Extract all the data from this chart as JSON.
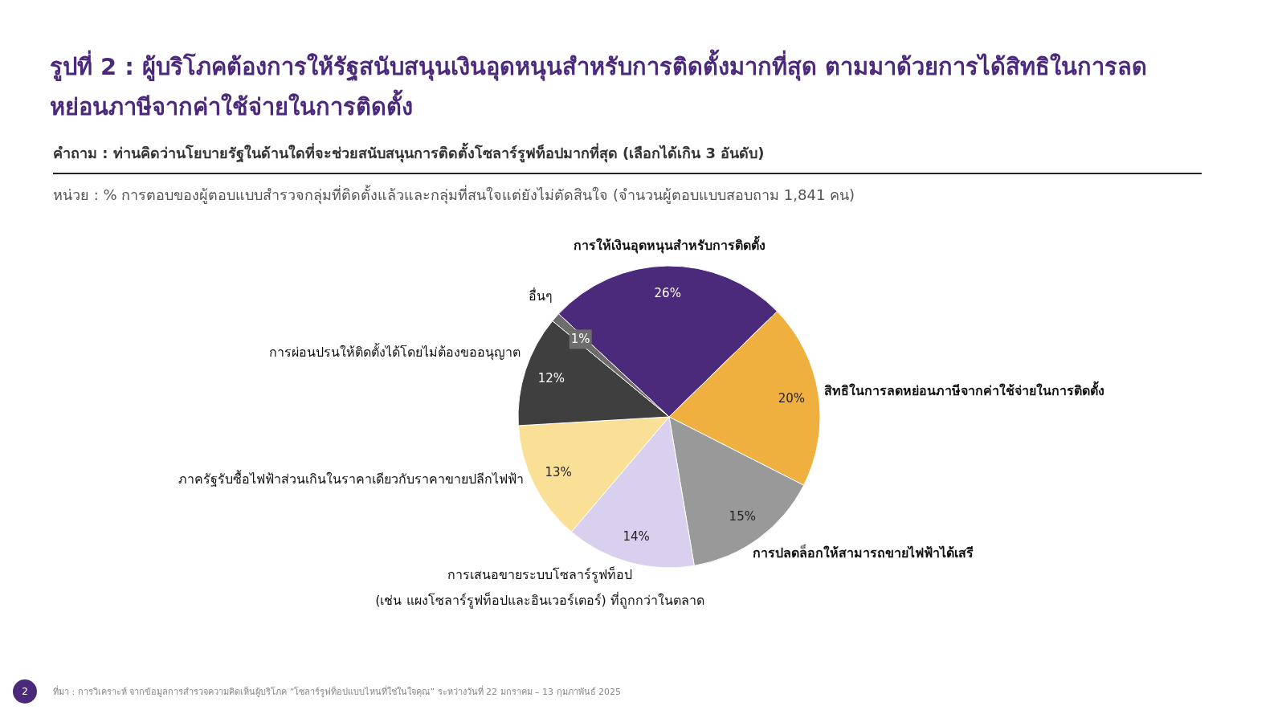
{
  "chart_data": {
    "type": "pie",
    "title": "รูปที่ 2 : ผู้บริโภคต้องการให้รัฐสนับสนุนเงินอุดหนุนสำหรับการติดตั้งมากที่สุด ตามมาด้วยการได้สิทธิในการลดหย่อนภาษีจากค่าใช้จ่ายในการติดตั้ง",
    "subtitle": "คำถาม : ท่านคิดว่านโยบายรัฐในด้านใดที่จะช่วยสนับสนุนการติดตั้งโซลาร์รูฟท็อปมากที่สุด (เลือกได้เกิน 3 อันดับ)",
    "categories": [
      "การให้เงินอุดหนุนสำหรับการติดตั้ง",
      "สิทธิในการลดหย่อนภาษีจากค่าใช้จ่ายในการติดตั้ง",
      "การปลดล็อกให้สามารถขายไฟฟ้าได้เสรี",
      "การเสนอขายระบบโซลาร์รูฟท็อป\n(เช่น แผงโซลาร์รูฟท็อปและอินเวอร์เตอร์) ที่ถูกกว่าในตลาด",
      "ภาครัฐรับซื้อไฟฟ้าส่วนเกินในราคาเดียวกับราคาขายปลีกไฟฟ้า",
      "การผ่อนปรนให้ติดตั้งได้โดยไม่ต้องขออนุญาต",
      "อื่นๆ"
    ],
    "values": [
      26,
      20,
      15,
      14,
      13,
      12,
      1
    ],
    "value_labels": [
      "26%",
      "20%",
      "15%",
      "14%",
      "13%",
      "12%",
      "1%"
    ],
    "colors": [
      "#4b2a7b",
      "#f0b03f",
      "#999999",
      "#d9cfee",
      "#f9e096",
      "#3f3f3f",
      "#6d6d6d"
    ],
    "annotations": [
      "หน่วย : % การตอบของผู้ตอบแบบสำรวจกลุ่มที่ติดตั้งแล้วและกลุ่มที่สนใจแต่ยังไม่ตัดสินใจ (จำนวนผู้ตอบแบบสอบถาม 1,841 คน)",
      "ที่มา : การวิเคราะห์ จากข้อมูลการสำรวจความคิดเห็นผู้บริโภค “โซลาร์รูฟท็อปแบบไหนที่ใช่ในใจคุณ” ระหว่างวันที่ 22 มกราคม – 13 กุมภาพันธ์ 2025",
      "2"
    ]
  }
}
